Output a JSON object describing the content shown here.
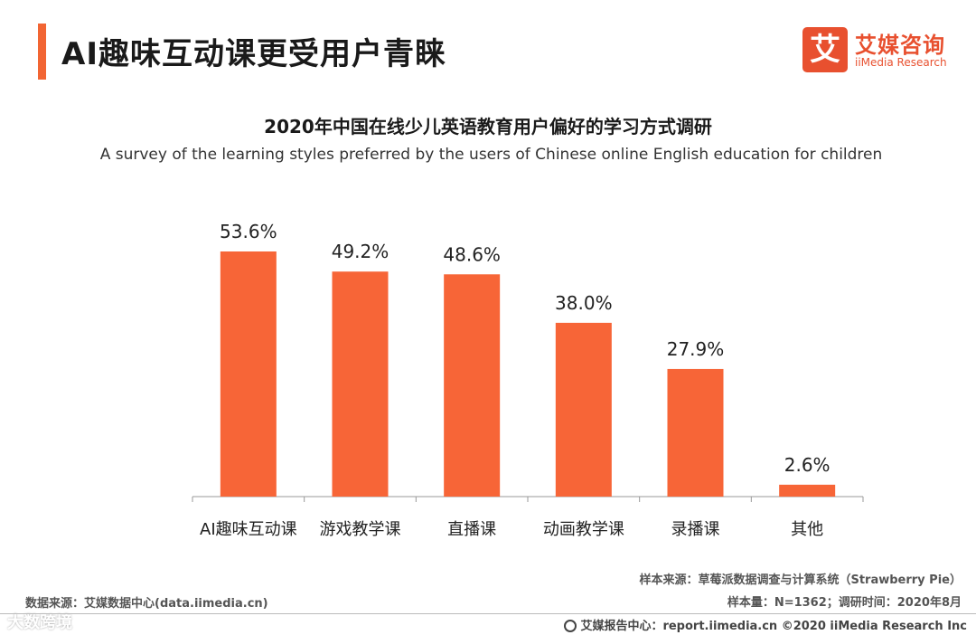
{
  "header": {
    "title": "AI趣味互动课更受用户青睐",
    "accent_color": "#f26533"
  },
  "logo": {
    "mark": "艾",
    "name_cn": "艾媒咨询",
    "name_en": "iiMedia Research",
    "color": "#e8502f"
  },
  "chart_data": {
    "type": "bar",
    "title": "2020年中国在线少儿英语教育用户偏好的学习方式调研",
    "subtitle": "A survey of the learning styles preferred by the users of Chinese online English education for children",
    "categories": [
      "AI趣味互动课",
      "游戏教学课",
      "直播课",
      "动画教学课",
      "录播课",
      "其他"
    ],
    "values": [
      53.6,
      49.2,
      48.6,
      38.0,
      27.9,
      2.6
    ],
    "labels": [
      "53.6%",
      "49.2%",
      "48.6%",
      "38.0%",
      "27.9%",
      "2.6%"
    ],
    "unit": "%",
    "ylim": [
      0,
      60
    ],
    "bar_color": "#f76537",
    "xlabel": "",
    "ylabel": "",
    "grid": false
  },
  "footer": {
    "sample_source": "样本来源：草莓派数据调查与计算系统（Strawberry Pie）",
    "sample_size": "样本量：N=1362；调研时间：2020年8月",
    "data_source": "数据来源：艾媒数据中心(data.iimedia.cn)",
    "watermark": "大数跨境",
    "report_center": "艾媒报告中心：report.iimedia.cn  ©2020  iiMedia Research  Inc"
  }
}
